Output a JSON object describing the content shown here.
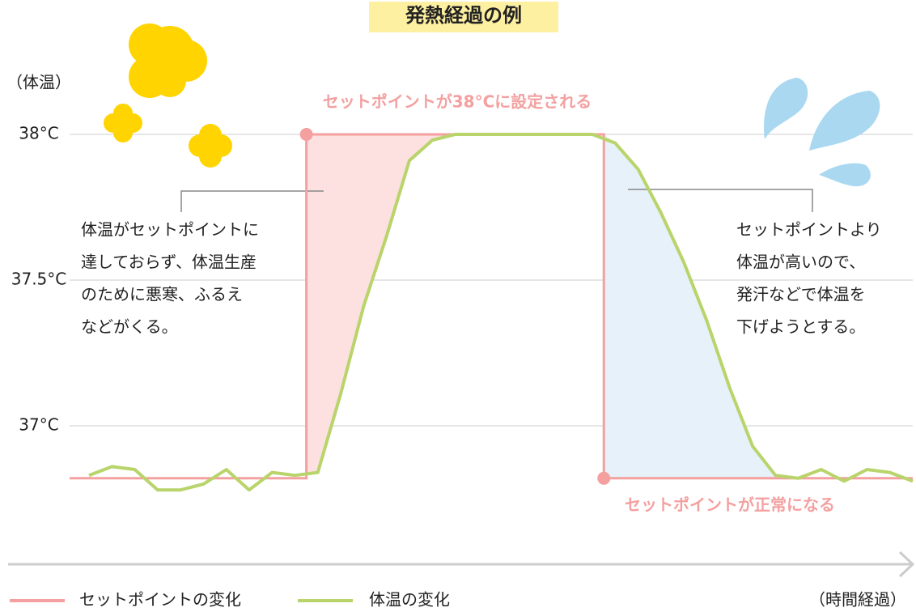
{
  "chart_data": {
    "type": "line",
    "title": "発熱経過の例",
    "y_label": "（体温）",
    "x_label": "（時間経過）",
    "categories": [
      null,
      null,
      null,
      null,
      null,
      null,
      null,
      null,
      null,
      null,
      null,
      null,
      null,
      null,
      null,
      null,
      null,
      null,
      null,
      null,
      null,
      null,
      null,
      null,
      null,
      null,
      null,
      null,
      null,
      null,
      null,
      null,
      null,
      null,
      null,
      null,
      null
    ],
    "series": [
      {
        "name": "セットポイントの変化",
        "color": "#f4a0a0",
        "step": "mid",
        "values": [
          36.82,
          36.82,
          36.82,
          36.82,
          36.82,
          36.82,
          36.82,
          36.82,
          36.82,
          36.82,
          38,
          38,
          38,
          38,
          38,
          38,
          38,
          38,
          38,
          38,
          38,
          38,
          38,
          36.82,
          36.82,
          36.82,
          36.82,
          36.82,
          36.82,
          36.82,
          36.82,
          36.82,
          36.82,
          36.82,
          36.82,
          36.82,
          36.82
        ]
      },
      {
        "name": "体温の変化",
        "color": "#b8d46a",
        "values": [
          36.83,
          36.86,
          36.85,
          36.78,
          36.78,
          36.8,
          36.85,
          36.78,
          36.84,
          36.83,
          36.84,
          37.11,
          37.41,
          37.65,
          37.91,
          37.98,
          38,
          38,
          38,
          38,
          38,
          38,
          38,
          37.97,
          37.88,
          37.73,
          37.56,
          37.36,
          37.13,
          36.93,
          36.83,
          36.82,
          36.85,
          36.81,
          36.85,
          36.84,
          36.81
        ]
      }
    ],
    "ylim": [
      36.5,
      38.2
    ],
    "yticks": [
      {
        "value": 37,
        "label": "37°C"
      },
      {
        "value": 37.5,
        "label": "37.5°C"
      },
      {
        "value": 38,
        "label": "38°C"
      }
    ],
    "grid": true,
    "annotations": {
      "rise": "セットポイントが38°Cに設定される",
      "normal": "セットポイントが正常になる",
      "left_note": [
        "体温がセットポイントに",
        "達しておらず、体温生産",
        "のために悪寒、ふるえ",
        "などがくる。"
      ],
      "right_note": [
        "セットポイントより",
        "体温が高いので、",
        "発汗などで体温を",
        "下げようとする。"
      ]
    },
    "fills": {
      "rise": "#fde0e0",
      "fall": "#e6f1f9"
    }
  }
}
